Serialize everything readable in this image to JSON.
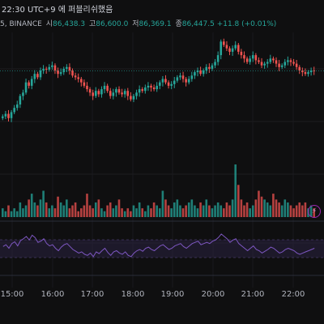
{
  "header": {
    "status_text": "22:30 UTC+9 에 퍼블리쉬했음",
    "symbol_suffix": "5, BINANCE",
    "open_label": "시",
    "open_value": "86,438.3",
    "high_label": "고",
    "high_value": "86,600.0",
    "low_label": "저",
    "low_value": "86,369.1",
    "close_label": "종",
    "close_value": "86,447.5",
    "change": "+11.8 (+0.01%)"
  },
  "time_axis": {
    "labels": [
      "15:00",
      "16:00",
      "17:00",
      "18:00",
      "19:00",
      "20:00",
      "21:00",
      "22:00"
    ]
  },
  "colors": {
    "up": "#26a69a",
    "down": "#ef5350",
    "rsi_line": "#7e57c2",
    "rsi_band": "#2a2340",
    "background": "#0f0f10"
  },
  "icons": {
    "bolt": "lightning-icon"
  },
  "chart_data": [
    {
      "type": "candlestick",
      "title": "",
      "x_range": [
        "14:45",
        "22:30"
      ],
      "candles_close": [
        86180,
        86195,
        86170,
        86205,
        86230,
        86250,
        86300,
        86320,
        86380,
        86360,
        86400,
        86430,
        86410,
        86450,
        86460,
        86455,
        86470,
        86480,
        86450,
        86430,
        86440,
        86460,
        86470,
        86450,
        86420,
        86410,
        86400,
        86380,
        86360,
        86340,
        86320,
        86300,
        86330,
        86310,
        86340,
        86360,
        86330,
        86300,
        86320,
        86340,
        86320,
        86310,
        86330,
        86300,
        86280,
        86300,
        86320,
        86340,
        86330,
        86350,
        86360,
        86350,
        86340,
        86360,
        86380,
        86400,
        86380,
        86360,
        86370,
        86390,
        86410,
        86420,
        86400,
        86380,
        86400,
        86420,
        86440,
        86450,
        86430,
        86450,
        86470,
        86460,
        86480,
        86500,
        86540,
        86620,
        86600,
        86580,
        86560,
        86580,
        86600,
        86560,
        86540,
        86520,
        86500,
        86520,
        86540,
        86510,
        86500,
        86480,
        86490,
        86500,
        86520,
        86510,
        86490,
        86470,
        86480,
        86500,
        86510,
        86500,
        86490,
        86470,
        86450,
        86440,
        86430,
        86440,
        86450,
        86447.5
      ]
    },
    {
      "type": "bar",
      "title": "",
      "values": [
        3,
        2,
        4,
        2,
        3,
        2,
        5,
        3,
        4,
        6,
        8,
        5,
        4,
        6,
        9,
        5,
        3,
        4,
        3,
        7,
        5,
        4,
        6,
        3,
        4,
        5,
        2,
        3,
        4,
        8,
        4,
        3,
        5,
        6,
        3,
        2,
        4,
        5,
        3,
        4,
        6,
        3,
        2,
        3,
        2,
        4,
        3,
        5,
        3,
        2,
        4,
        3,
        5,
        4,
        3,
        9,
        6,
        4,
        3,
        5,
        6,
        4,
        3,
        4,
        5,
        6,
        4,
        3,
        5,
        4,
        6,
        4,
        3,
        4,
        5,
        4,
        3,
        5,
        4,
        6,
        18,
        11,
        6,
        4,
        5,
        3,
        4,
        6,
        9,
        7,
        6,
        5,
        4,
        8,
        6,
        5,
        4,
        6,
        5,
        4,
        3,
        4,
        5,
        4,
        5,
        3,
        4,
        3
      ]
    },
    {
      "type": "line",
      "title": "",
      "series_name": "",
      "ylim": [
        0,
        100
      ],
      "band": [
        30,
        70
      ],
      "values": [
        55,
        58,
        52,
        60,
        63,
        56,
        65,
        68,
        72,
        66,
        74,
        70,
        62,
        64,
        68,
        60,
        56,
        58,
        52,
        48,
        54,
        58,
        60,
        55,
        50,
        47,
        44,
        46,
        42,
        40,
        44,
        38,
        46,
        43,
        48,
        52,
        45,
        40,
        46,
        48,
        44,
        42,
        46,
        40,
        38,
        44,
        48,
        50,
        47,
        52,
        54,
        50,
        48,
        52,
        56,
        58,
        54,
        50,
        52,
        56,
        58,
        60,
        55,
        52,
        56,
        60,
        62,
        64,
        58,
        60,
        62,
        60,
        64,
        66,
        70,
        76,
        72,
        68,
        62,
        66,
        68,
        60,
        56,
        52,
        48,
        52,
        56,
        50,
        48,
        44,
        47,
        50,
        54,
        52,
        48,
        44,
        46,
        50,
        52,
        50,
        48,
        44,
        42,
        44,
        46,
        48,
        50,
        52
      ]
    }
  ]
}
